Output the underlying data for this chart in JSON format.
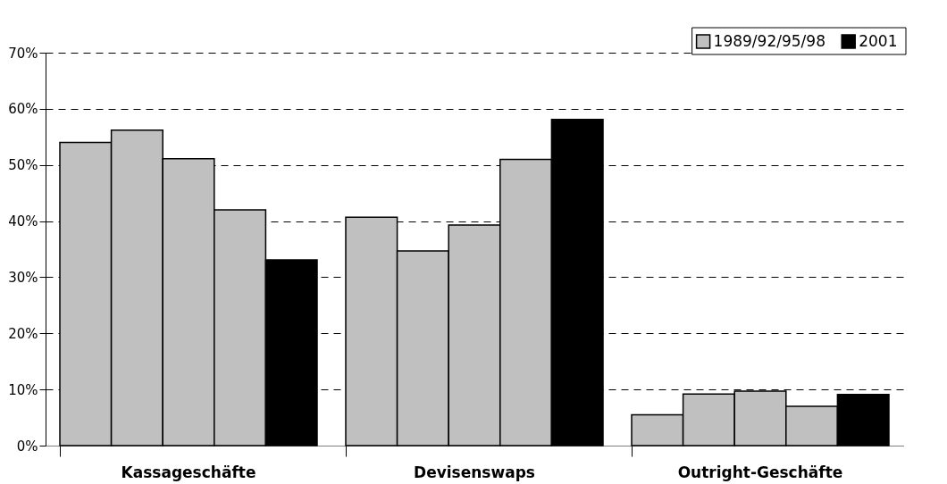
{
  "chart_data": {
    "type": "bar",
    "categories": [
      "Kassageschäfte",
      "Devisenswaps",
      "Outright-Geschäfte"
    ],
    "series": [
      {
        "name": "1989/92/95/98",
        "color": "#c0c0c0",
        "values": [
          54.0,
          40.7,
          5.5
        ]
      },
      {
        "color": "#c0c0c0",
        "values": [
          56.2,
          34.7,
          9.2
        ]
      },
      {
        "color": "#c0c0c0",
        "values": [
          51.1,
          39.3,
          9.7
        ]
      },
      {
        "color": "#c0c0c0",
        "values": [
          42.0,
          51.0,
          7.0
        ]
      },
      {
        "name": "2001",
        "color": "#000000",
        "values": [
          33.1,
          58.1,
          9.1
        ]
      }
    ],
    "ylim": [
      0,
      70
    ],
    "yticks": [
      {
        "value": 0,
        "label": "0%"
      },
      {
        "value": 10,
        "label": "10%"
      },
      {
        "value": 20,
        "label": "20%"
      },
      {
        "value": 30,
        "label": "30%"
      },
      {
        "value": 40,
        "label": "40%"
      },
      {
        "value": 50,
        "label": "50%"
      },
      {
        "value": 60,
        "label": "60%"
      },
      {
        "value": 70,
        "label": "70%"
      }
    ],
    "grid": "y",
    "legend": "top right"
  }
}
